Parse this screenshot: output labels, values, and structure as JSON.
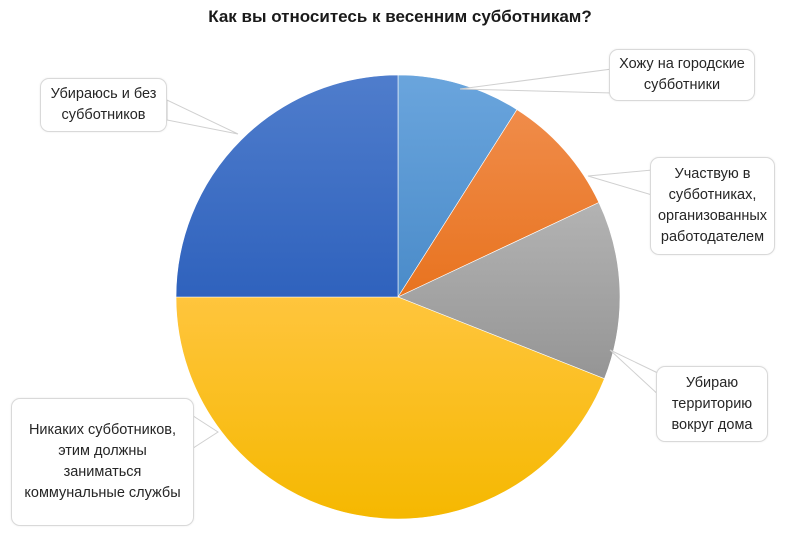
{
  "chart_data": {
    "type": "pie",
    "title": "Как вы относитесь к весенним субботникам?",
    "categories": [
      "Хожу на городские субботники",
      "Участвую в субботниках, организованных работодателем",
      "Убираю территорию вокруг дома",
      "Никаких субботников, этим должны заниматься коммунальные службы",
      "Убираюсь и без субботников"
    ],
    "values": [
      9,
      9,
      13,
      44,
      25
    ],
    "unit": "%",
    "colors": [
      "#5b9bd5",
      "#ed7d31",
      "#a5a5a5",
      "#ffc000",
      "#4472c4"
    ],
    "start_angle": "12 o'clock, clockwise",
    "legend": "none (data callouts)",
    "data_labels": "category names in callout boxes"
  },
  "title": "Как вы относитесь к весенним субботникам?",
  "callouts": {
    "city": "Хожу на городские субботники",
    "employer": "Участвую в субботниках, организованных работодателем",
    "home": "Убираю территорию вокруг дома",
    "none": "Никаких субботников, этим должны заниматься коммунальные службы",
    "self": "Убираюсь и без субботников"
  }
}
